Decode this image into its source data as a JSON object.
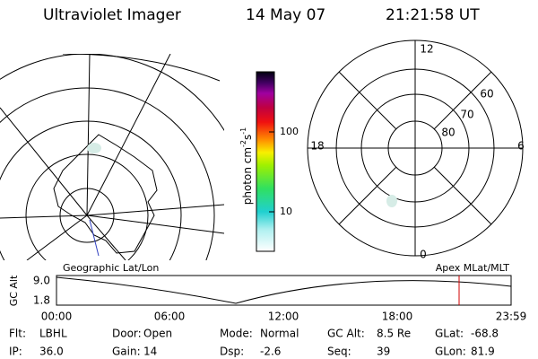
{
  "header": {
    "title": "Ultraviolet Imager",
    "date": "14 May 07",
    "time": "21:21:58 UT"
  },
  "colorbar": {
    "unit": [
      "photon cm",
      "-2",
      "s",
      "-1"
    ],
    "ticks": [
      "100",
      "10"
    ]
  },
  "polar_plot": {
    "mlt_labels": [
      "12",
      "18",
      "6",
      "0"
    ],
    "lat_labels": [
      "60",
      "70",
      "80"
    ]
  },
  "timeline": {
    "left_title": "Geographic Lat/Lon",
    "right_title": "Apex MLat/MLT",
    "axis_label": "GC Alt",
    "y_labels": [
      "9.0",
      "1.8"
    ],
    "x_labels": [
      "00:00",
      "06:00",
      "12:00",
      "18:00",
      "23:59"
    ]
  },
  "info": [
    [
      {
        "label": "Flt:",
        "value": "LBHL"
      },
      {
        "label": "Door:",
        "value": "Open"
      },
      {
        "label": "Mode:",
        "value": "Normal"
      },
      {
        "label": "GC Alt:",
        "value": "8.5 Re"
      },
      {
        "label": "GLat:",
        "value": "-68.8"
      }
    ],
    [
      {
        "label": "IP:",
        "value": "36.0"
      },
      {
        "label": "Gain:",
        "value": "14"
      },
      {
        "label": "Dsp:",
        "value": "-2.6"
      },
      {
        "label": "Seq:",
        "value": "39"
      },
      {
        "label": "GLon:",
        "value": "81.9"
      }
    ]
  ]
}
